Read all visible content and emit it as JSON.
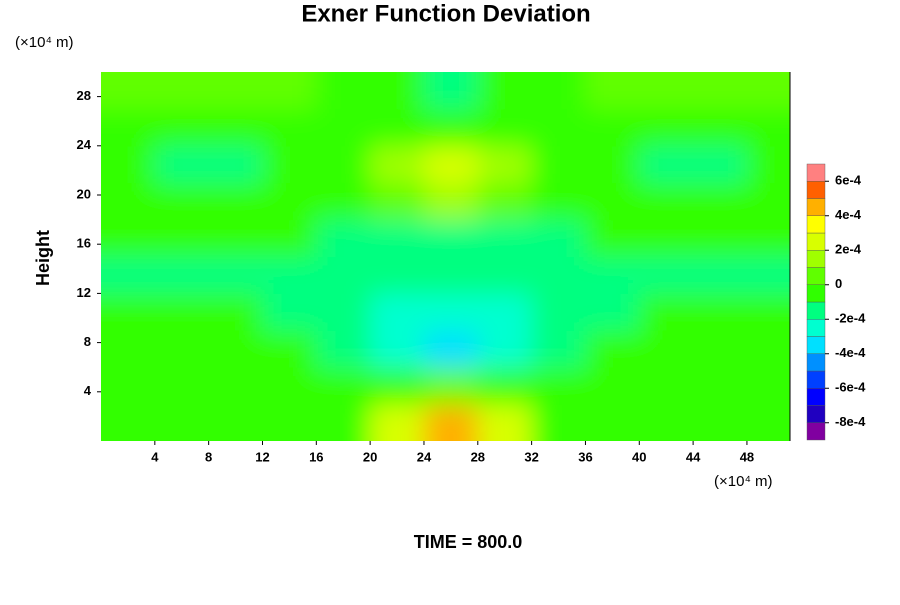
{
  "chart_data": {
    "type": "contour",
    "title": "Exner Function Deviation",
    "xlabel_unit": "(×10⁴ m)",
    "ylabel_unit": "(×10⁴ m)",
    "ylabel": "Height",
    "footer": "TIME = 800.0",
    "xlim": [
      0,
      51.2
    ],
    "ylim": [
      0,
      30
    ],
    "xticks": [
      4,
      8,
      12,
      16,
      20,
      24,
      28,
      32,
      36,
      40,
      44,
      48
    ],
    "yticks": [
      4,
      8,
      12,
      16,
      20,
      24,
      28
    ],
    "x": [
      2,
      6,
      10,
      14,
      18,
      22,
      26,
      30,
      34,
      38,
      42,
      46,
      50
    ],
    "y": [
      1.5,
      4.5,
      7.5,
      10.5,
      13.5,
      16.5,
      19.5,
      22.5,
      25.5,
      28.5
    ],
    "z": [
      [
        -5e-05,
        -5e-05,
        -5e-05,
        -5e-05,
        -2e-05,
        0.00025,
        0.00045,
        0.00025,
        -2e-05,
        -5e-05,
        -5e-05,
        -5e-05,
        -5e-05
      ],
      [
        -5e-05,
        -5e-05,
        -5e-05,
        -8e-05,
        -0.0001,
        -5e-05,
        5e-05,
        -5e-05,
        -0.0001,
        -8e-05,
        -5e-05,
        -5e-05,
        -5e-05
      ],
      [
        -5e-05,
        -5e-05,
        -8e-05,
        -0.0001,
        -0.00015,
        -0.0003,
        -0.0004,
        -0.0003,
        -0.00015,
        -0.0001,
        -8e-05,
        -5e-05,
        -5e-05
      ],
      [
        -0.0001,
        -0.0001,
        -0.0001,
        -0.00012,
        -0.00015,
        -0.00025,
        -0.0003,
        -0.00025,
        -0.00015,
        -0.00012,
        -0.0001,
        -0.0001,
        -0.0001
      ],
      [
        -0.00015,
        -0.00015,
        -0.00015,
        -0.00015,
        -0.00015,
        -0.0002,
        -0.0002,
        -0.0002,
        -0.00015,
        -0.00015,
        -0.00015,
        -0.00015,
        -0.00015
      ],
      [
        -0.0001,
        -0.0001,
        -0.0001,
        -0.0001,
        -0.00015,
        -0.00015,
        -0.00015,
        -0.00015,
        -0.00015,
        -0.0001,
        -0.0001,
        -0.0001,
        -0.0001
      ],
      [
        -5e-05,
        -0.0001,
        -0.0001,
        -0.0001,
        -5e-05,
        5e-05,
        0.00015,
        5e-05,
        -5e-05,
        -0.0001,
        -0.0001,
        -0.0001,
        -5e-05
      ],
      [
        -0.0001,
        -0.00015,
        -0.00015,
        -0.0001,
        -5e-05,
        0.0001,
        0.0002,
        0.0001,
        -5e-05,
        -0.0001,
        -0.00015,
        -0.00015,
        -0.0001
      ],
      [
        -5e-05,
        -5e-05,
        -5e-05,
        -0.0001,
        -0.0001,
        -0.0001,
        -0.0001,
        -0.0001,
        -0.0001,
        -0.0001,
        -5e-05,
        -5e-05,
        -5e-05
      ],
      [
        5e-05,
        5e-05,
        5e-05,
        0,
        -0.0001,
        -0.0001,
        -0.00015,
        -0.0001,
        -0.0001,
        0,
        5e-05,
        5e-05,
        5e-05
      ]
    ],
    "levels": [
      -0.0009,
      -0.0008,
      -0.0007,
      -0.0006,
      -0.0005,
      -0.0004,
      -0.0003,
      -0.0002,
      -0.0001,
      0,
      0.0001,
      0.0002,
      0.0003,
      0.0004,
      0.0005,
      0.0006,
      0.0007
    ],
    "colors": [
      "#8000a0",
      "#2000c0",
      "#0000ff",
      "#0040ff",
      "#0090ff",
      "#00e0ff",
      "#00ffd0",
      "#00ff80",
      "#30ff00",
      "#60ff00",
      "#a0ff00",
      "#d8ff00",
      "#ffff00",
      "#ffb000",
      "#ff6000",
      "#ff8080"
    ],
    "cbarticks": [
      {
        "value": 0.0006,
        "label": "6e-4"
      },
      {
        "value": 0.0004,
        "label": "4e-4"
      },
      {
        "value": 0.0002,
        "label": "2e-4"
      },
      0,
      {
        "value": -0.0002,
        "label": "-2e-4"
      },
      {
        "value": -0.0004,
        "label": "-4e-4"
      },
      {
        "value": -0.0006,
        "label": "-6e-4"
      },
      {
        "value": -0.0008,
        "label": "-8e-4"
      }
    ]
  }
}
